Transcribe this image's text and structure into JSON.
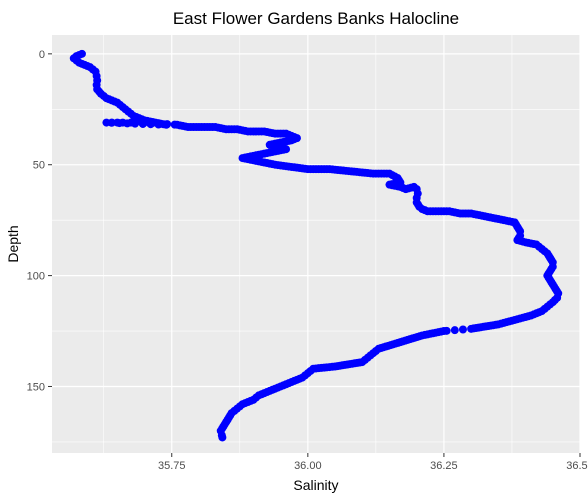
{
  "chart_data": {
    "type": "scatter",
    "title": "East Flower Gardens Banks Halocline",
    "xlabel": "Salinity",
    "ylabel": "Depth",
    "xlim": [
      35.53,
      36.5
    ],
    "ylim": [
      0,
      180
    ],
    "y_reversed": true,
    "x_ticks": [
      35.75,
      36.0,
      36.25,
      36.5
    ],
    "x_tick_labels": [
      "35.75",
      "36.00",
      "36.25",
      "36.50"
    ],
    "y_ticks": [
      0,
      50,
      100,
      150
    ],
    "y_tick_labels": [
      "0",
      "50",
      "100",
      "150"
    ],
    "grid": true,
    "panel_background": "#ebebeb",
    "grid_color": "#ffffff",
    "point_color": "#0000ff",
    "points": [
      [
        35.585,
        0
      ],
      [
        35.575,
        1
      ],
      [
        35.57,
        2
      ],
      [
        35.575,
        3
      ],
      [
        35.58,
        4
      ],
      [
        35.59,
        5
      ],
      [
        35.6,
        6
      ],
      [
        35.605,
        7
      ],
      [
        35.61,
        8
      ],
      [
        35.612,
        10
      ],
      [
        35.613,
        12
      ],
      [
        35.612,
        14
      ],
      [
        35.613,
        16
      ],
      [
        35.62,
        18
      ],
      [
        35.625,
        19
      ],
      [
        35.63,
        20
      ],
      [
        35.64,
        21
      ],
      [
        35.65,
        22
      ],
      [
        35.655,
        23
      ],
      [
        35.66,
        24
      ],
      [
        35.665,
        25
      ],
      [
        35.67,
        26
      ],
      [
        35.675,
        27
      ],
      [
        35.68,
        28
      ],
      [
        35.69,
        29
      ],
      [
        35.7,
        30
      ],
      [
        35.72,
        31
      ],
      [
        35.74,
        32
      ],
      [
        35.63,
        31
      ],
      [
        35.64,
        31
      ],
      [
        35.65,
        31
      ],
      [
        35.66,
        31
      ],
      [
        35.68,
        31
      ],
      [
        35.7,
        31
      ],
      [
        35.76,
        32
      ],
      [
        35.78,
        33
      ],
      [
        35.8,
        33
      ],
      [
        35.83,
        33
      ],
      [
        35.85,
        34
      ],
      [
        35.87,
        34
      ],
      [
        35.89,
        35
      ],
      [
        35.92,
        35
      ],
      [
        35.94,
        36
      ],
      [
        35.96,
        36
      ],
      [
        35.97,
        37
      ],
      [
        35.98,
        38
      ],
      [
        35.97,
        39
      ],
      [
        35.95,
        40
      ],
      [
        35.93,
        41
      ],
      [
        35.95,
        42
      ],
      [
        35.96,
        43
      ],
      [
        35.94,
        44
      ],
      [
        35.92,
        45
      ],
      [
        35.9,
        46
      ],
      [
        35.88,
        47
      ],
      [
        35.9,
        48
      ],
      [
        35.92,
        49
      ],
      [
        35.94,
        50
      ],
      [
        35.97,
        51
      ],
      [
        36.0,
        52
      ],
      [
        36.04,
        52
      ],
      [
        36.08,
        53
      ],
      [
        36.12,
        54
      ],
      [
        36.15,
        54
      ],
      [
        36.165,
        56
      ],
      [
        36.17,
        58
      ],
      [
        36.15,
        59
      ],
      [
        36.17,
        60
      ],
      [
        36.18,
        61
      ],
      [
        36.195,
        60
      ],
      [
        36.2,
        61
      ],
      [
        36.202,
        63
      ],
      [
        36.2,
        65
      ],
      [
        36.2,
        67
      ],
      [
        36.205,
        69
      ],
      [
        36.21,
        70
      ],
      [
        36.22,
        71
      ],
      [
        36.24,
        71
      ],
      [
        36.26,
        71
      ],
      [
        36.28,
        72
      ],
      [
        36.3,
        72
      ],
      [
        36.32,
        73
      ],
      [
        36.34,
        74
      ],
      [
        36.36,
        75
      ],
      [
        36.38,
        76
      ],
      [
        36.385,
        78
      ],
      [
        36.39,
        80
      ],
      [
        36.39,
        82
      ],
      [
        36.385,
        84
      ],
      [
        36.4,
        85
      ],
      [
        36.42,
        86
      ],
      [
        36.43,
        88
      ],
      [
        36.44,
        90
      ],
      [
        36.445,
        92
      ],
      [
        36.45,
        94
      ],
      [
        36.45,
        96
      ],
      [
        36.445,
        98
      ],
      [
        36.44,
        100
      ],
      [
        36.445,
        102
      ],
      [
        36.45,
        104
      ],
      [
        36.455,
        106
      ],
      [
        36.46,
        108
      ],
      [
        36.458,
        110
      ],
      [
        36.45,
        112
      ],
      [
        36.44,
        114
      ],
      [
        36.43,
        116
      ],
      [
        36.41,
        118
      ],
      [
        36.38,
        120
      ],
      [
        36.35,
        122
      ],
      [
        36.3,
        124
      ],
      [
        36.25,
        125
      ],
      [
        36.21,
        127
      ],
      [
        36.17,
        130
      ],
      [
        36.13,
        133
      ],
      [
        36.12,
        135
      ],
      [
        36.11,
        137
      ],
      [
        36.1,
        139
      ],
      [
        36.05,
        141
      ],
      [
        36.01,
        142
      ],
      [
        36.0,
        144
      ],
      [
        35.99,
        146
      ],
      [
        35.97,
        148
      ],
      [
        35.95,
        150
      ],
      [
        35.93,
        152
      ],
      [
        35.91,
        154
      ],
      [
        35.9,
        156
      ],
      [
        35.88,
        158
      ],
      [
        35.87,
        160
      ],
      [
        35.86,
        162
      ],
      [
        35.855,
        164
      ],
      [
        35.85,
        166
      ],
      [
        35.845,
        168
      ],
      [
        35.84,
        170
      ],
      [
        35.842,
        172
      ],
      [
        35.843,
        173
      ]
    ]
  }
}
